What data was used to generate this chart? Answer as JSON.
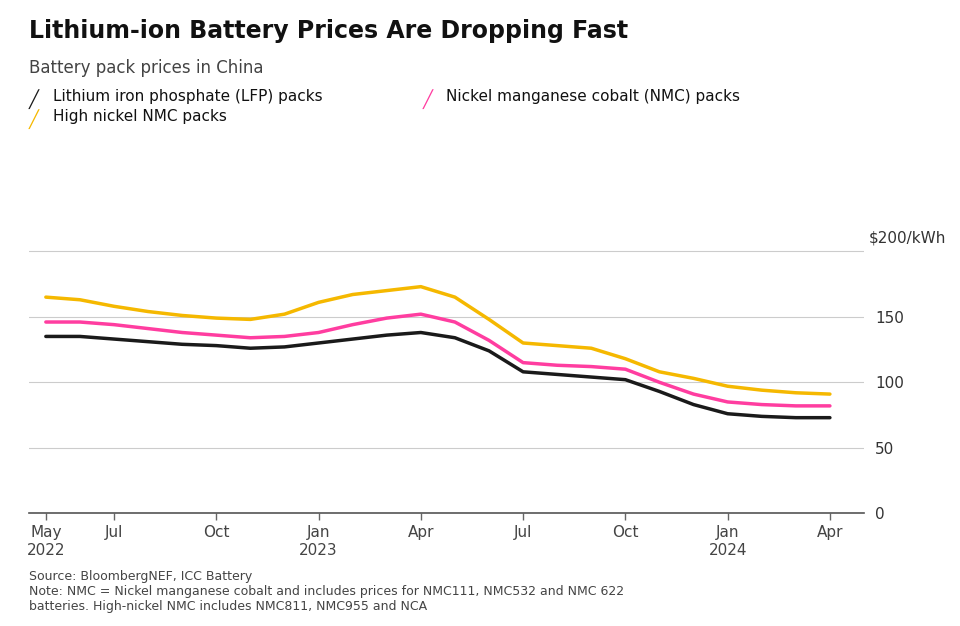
{
  "title": "Lithium-ion Battery Prices Are Dropping Fast",
  "subtitle": "Battery pack prices in China",
  "ylabel": "$200/kWh",
  "source_note": "Source: BloombergNEF, ICC Battery\nNote: NMC = Nickel manganese cobalt and includes prices for NMC111, NMC532 and NMC 622\nbatteries. High-nickel NMC includes NMC811, NMC955 and NCA",
  "background_color": "#ffffff",
  "grid_color": "#cccccc",
  "ylim": [
    0,
    215
  ],
  "yticks": [
    0,
    50,
    100,
    150
  ],
  "ytick_labels": [
    "0",
    "50",
    "100",
    "150"
  ],
  "extra_gridline": 200,
  "legend_entries": [
    {
      "label": "Lithium iron phosphate (LFP) packs",
      "color": "#1a1a1a"
    },
    {
      "label": "Nickel manganese cobalt (NMC) packs",
      "color": "#ff3da0"
    },
    {
      "label": "High nickel NMC packs",
      "color": "#f5b800"
    }
  ],
  "x_tick_labels": [
    "May\n2022",
    "Jul",
    "Oct",
    "Jan\n2023",
    "Apr",
    "Jul",
    "Oct",
    "Jan\n2024",
    "Apr"
  ],
  "x_tick_positions": [
    0,
    2,
    5,
    8,
    11,
    14,
    17,
    20,
    23
  ],
  "lfp": {
    "x": [
      0,
      1,
      2,
      3,
      4,
      5,
      6,
      7,
      8,
      9,
      10,
      11,
      12,
      13,
      14,
      15,
      16,
      17,
      18,
      19,
      20,
      21,
      22,
      23
    ],
    "y": [
      135,
      135,
      133,
      131,
      129,
      128,
      126,
      127,
      130,
      133,
      136,
      138,
      134,
      124,
      108,
      106,
      104,
      102,
      93,
      83,
      76,
      74,
      73,
      73
    ]
  },
  "nmc": {
    "x": [
      0,
      1,
      2,
      3,
      4,
      5,
      6,
      7,
      8,
      9,
      10,
      11,
      12,
      13,
      14,
      15,
      16,
      17,
      18,
      19,
      20,
      21,
      22,
      23
    ],
    "y": [
      146,
      146,
      144,
      141,
      138,
      136,
      134,
      135,
      138,
      144,
      149,
      152,
      146,
      132,
      115,
      113,
      112,
      110,
      100,
      91,
      85,
      83,
      82,
      82
    ]
  },
  "high_nmc": {
    "x": [
      0,
      1,
      2,
      3,
      4,
      5,
      6,
      7,
      8,
      9,
      10,
      11,
      12,
      13,
      14,
      15,
      16,
      17,
      18,
      19,
      20,
      21,
      22,
      23
    ],
    "y": [
      165,
      163,
      158,
      154,
      151,
      149,
      148,
      152,
      161,
      167,
      170,
      173,
      165,
      148,
      130,
      128,
      126,
      118,
      108,
      103,
      97,
      94,
      92,
      91
    ]
  }
}
